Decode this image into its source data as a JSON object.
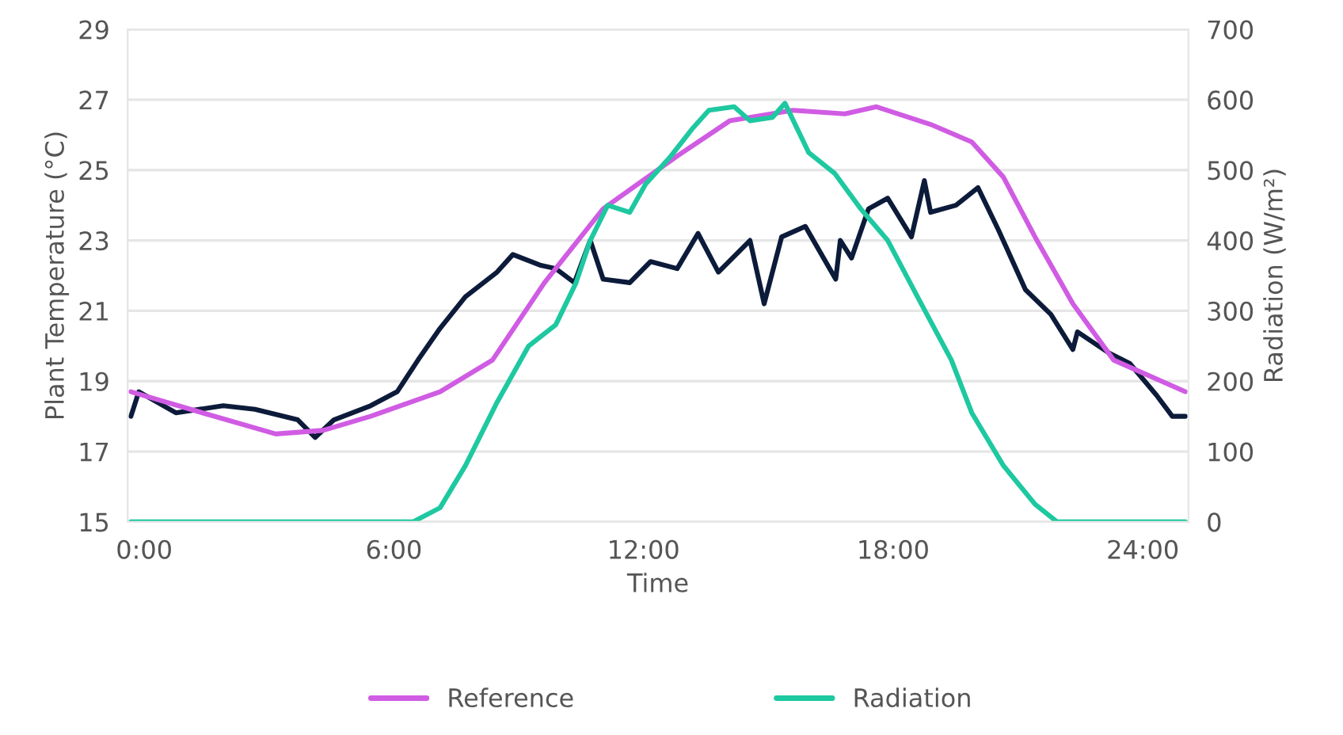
{
  "chart_data": {
    "type": "line",
    "xlabel": "Time",
    "ylabel": "Plant Temperature (°C)",
    "y2label": "Radiation (W/m²)",
    "xlim": [
      -0.4,
      25.1
    ],
    "xticks": [
      {
        "value": 0,
        "label": "0:00"
      },
      {
        "value": 6,
        "label": "6:00"
      },
      {
        "value": 12,
        "label": "12:00"
      },
      {
        "value": 18,
        "label": "18:00"
      },
      {
        "value": 24,
        "label": "24:00"
      }
    ],
    "ylim": [
      15,
      29
    ],
    "yticks": [
      15,
      17,
      19,
      21,
      23,
      25,
      27,
      29
    ],
    "y2lim": [
      0,
      700
    ],
    "y2ticks": [
      0,
      100,
      200,
      300,
      400,
      500,
      600,
      700
    ],
    "grid": "y",
    "legend": "bottom",
    "marker": "none",
    "line_style": "solid",
    "series": [
      {
        "color": "#0d1b3a",
        "x": [
          -0.32,
          -0.13,
          0.76,
          1.9,
          2.66,
          3.69,
          4.11,
          4.56,
          5.44,
          6.08,
          6.58,
          7.11,
          7.72,
          8.48,
          8.86,
          9.51,
          9.89,
          10.34,
          10.72,
          11.03,
          11.67,
          12.17,
          12.81,
          13.31,
          13.8,
          14.56,
          14.9,
          15.32,
          15.89,
          16.62,
          16.73,
          17.0,
          17.41,
          17.87,
          18.44,
          18.75,
          18.9,
          19.51,
          20.04,
          20.53,
          21.18,
          21.79,
          22.32,
          22.43,
          23.19,
          23.69,
          24.33,
          24.71,
          25.02
        ],
        "values": [
          18.0,
          18.7,
          18.1,
          18.3,
          18.2,
          17.9,
          17.4,
          17.9,
          18.3,
          18.7,
          19.6,
          20.5,
          21.4,
          22.1,
          22.6,
          22.3,
          22.2,
          21.8,
          23.0,
          21.9,
          21.8,
          22.4,
          22.2,
          23.2,
          22.1,
          23.0,
          21.2,
          23.1,
          23.4,
          21.9,
          23.0,
          22.5,
          23.9,
          24.2,
          23.1,
          24.7,
          23.8,
          24.0,
          24.5,
          23.3,
          21.6,
          20.9,
          19.9,
          20.4,
          19.8,
          19.5,
          18.6,
          18.0,
          18.0
        ]
      },
      {
        "name": "Reference",
        "color": "#d05ce3",
        "x": [
          -0.32,
          1.4,
          3.16,
          4.3,
          5.44,
          7.11,
          8.37,
          9.62,
          11.03,
          12.81,
          14.07,
          15.59,
          16.84,
          17.6,
          18.9,
          19.89,
          20.65,
          21.41,
          22.32,
          23.3,
          25.02
        ],
        "values": [
          18.7,
          18.1,
          17.5,
          17.6,
          18.0,
          18.7,
          19.6,
          21.8,
          23.9,
          25.4,
          26.4,
          26.7,
          26.6,
          26.8,
          26.3,
          25.8,
          24.8,
          23.1,
          21.2,
          19.6,
          18.7
        ]
      },
      {
        "name": "Radiation",
        "color": "#1ec8a0",
        "axis": "y2",
        "x": [
          -0.32,
          6.46,
          7.11,
          7.72,
          8.48,
          9.24,
          9.89,
          10.38,
          10.72,
          11.14,
          11.67,
          12.05,
          12.66,
          13.19,
          13.57,
          14.18,
          14.56,
          15.1,
          15.4,
          15.97,
          16.6,
          17.22,
          17.87,
          18.63,
          19.4,
          19.89,
          20.65,
          21.41,
          21.94,
          25.02
        ],
        "values": [
          0,
          0,
          20,
          80,
          170,
          250,
          280,
          340,
          400,
          450,
          440,
          480,
          520,
          560,
          585,
          590,
          570,
          575,
          595,
          525,
          495,
          445,
          400,
          315,
          230,
          155,
          80,
          25,
          0,
          0
        ]
      }
    ]
  }
}
